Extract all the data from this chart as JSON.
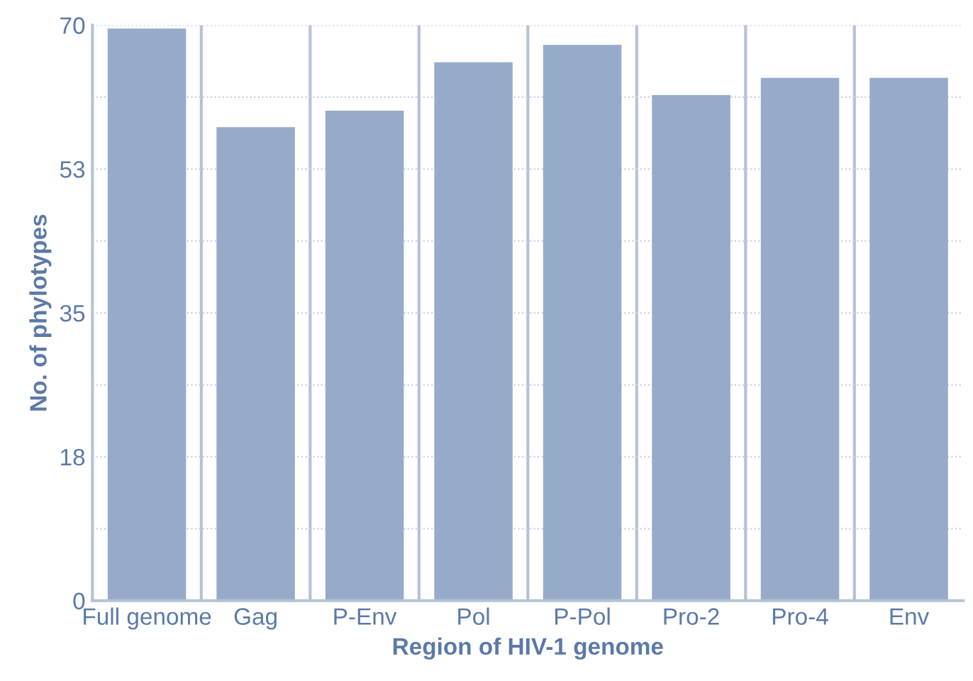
{
  "chart_data": {
    "type": "bar",
    "xlabel": "Region of HIV-1 genome",
    "ylabel": "No. of phylotypes",
    "categories": [
      "Full genome",
      "Gag",
      "P-Env",
      "Pol",
      "P-Pol",
      "Pro-2",
      "Pro-4",
      "Env"
    ],
    "values": [
      69.6,
      57.6,
      59.6,
      65.5,
      67.6,
      61.5,
      63.6,
      63.6
    ],
    "color": "#96abc9",
    "ylim": [
      0,
      70
    ],
    "yticks": [
      0,
      {
        "value": 8.75,
        "label": null
      },
      {
        "value": 17.5,
        "label": "18"
      },
      {
        "value": 26.25,
        "label": null
      },
      35,
      {
        "value": 43.75,
        "label": null
      },
      {
        "value": 52.5,
        "label": "53"
      },
      {
        "value": 61.25,
        "label": null
      },
      70
    ],
    "grid": true
  }
}
